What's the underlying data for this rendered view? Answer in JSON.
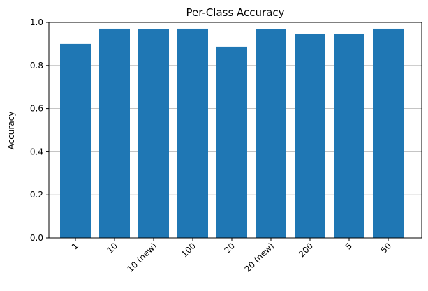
{
  "chart_data": {
    "type": "bar",
    "title": "Per-Class Accuracy",
    "y_label": "Accuracy",
    "categories": [
      "1",
      "10",
      "10 (new)",
      "100",
      "20",
      "20 (new)",
      "200",
      "5",
      "50"
    ],
    "values": [
      0.9,
      0.971,
      0.968,
      0.971,
      0.887,
      0.968,
      0.945,
      0.945,
      0.971
    ],
    "color": "#1f77b4",
    "ylim": [
      0,
      1
    ],
    "yticks": [
      {
        "value": 0,
        "label": "0.0"
      },
      0.2,
      0.4,
      0.6,
      0.8,
      {
        "value": 1,
        "label": "1.0"
      }
    ],
    "grid": true
  }
}
